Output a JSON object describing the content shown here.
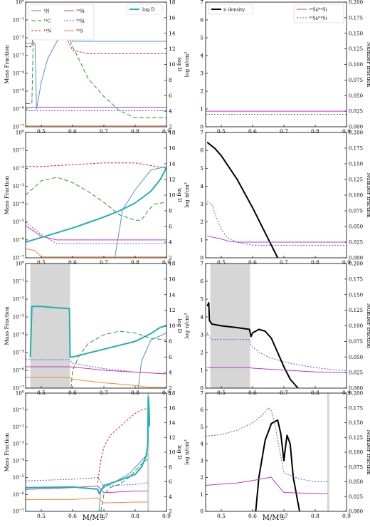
{
  "figure": {
    "xlabel": "M/M☉"
  },
  "chart_data": [
    {
      "type": "line",
      "panel": "left-row1",
      "xlim": [
        0.45,
        0.9
      ],
      "ylim_log": [
        -7,
        0
      ],
      "y2lim": [
        2,
        18
      ],
      "ylabel": "Mass Fraction",
      "y2label": "log D",
      "legend": [
        "¹H",
        "¹³C",
        "¹⁴N",
        "²⁹Si",
        "³⁰Si",
        "³²S"
      ],
      "legend2": [
        "log D"
      ],
      "series": [
        {
          "name": "¹H",
          "color": "#5b8fd0",
          "dash": "",
          "x": [
            0.45,
            0.48,
            0.485,
            0.5,
            0.52,
            0.55,
            0.58,
            0.6,
            0.7,
            0.9
          ],
          "y": [
            -2.3,
            -2.3,
            -6,
            -4.5,
            -3.2,
            -2.2,
            -1.6,
            -2.2,
            -2.2,
            -2.2
          ]
        },
        {
          "name": "¹³C",
          "color": "#2a9a2a",
          "dash": "6,3",
          "x": [
            0.45,
            0.47,
            0.475,
            0.5,
            0.55,
            0.58,
            0.6,
            0.62,
            0.65,
            0.7,
            0.75,
            0.8,
            0.9
          ],
          "y": [
            -5.7,
            -5.7,
            -1.5,
            -1.7,
            -2.0,
            -1.6,
            -2.5,
            -3.2,
            -4.3,
            -5.3,
            -6.1,
            -6.5,
            -6.5
          ]
        },
        {
          "name": "¹⁴N",
          "color": "#e0281e",
          "dash": "3,2",
          "x": [
            0.45,
            0.47,
            0.48,
            0.52,
            0.55,
            0.58,
            0.6,
            0.65,
            0.7,
            0.9
          ],
          "y": [
            -2.5,
            -2.5,
            -0.7,
            -0.9,
            -1.4,
            -2.0,
            -2.7,
            -2.9,
            -2.9,
            -2.9
          ]
        },
        {
          "name": "²⁹Si",
          "color": "#c038c0",
          "dash": "",
          "x": [
            0.45,
            0.9
          ],
          "y": [
            -5.9,
            -5.9
          ]
        },
        {
          "name": "³⁰Si",
          "color": "#5c5cdd",
          "dash": "2,2",
          "x": [
            0.45,
            0.9
          ],
          "y": [
            -6.1,
            -6.1
          ]
        },
        {
          "name": "³²S",
          "color": "#f08a30",
          "dash": "",
          "x": [
            0.45,
            0.9
          ],
          "y": [
            -6.95,
            -6.95
          ]
        }
      ]
    },
    {
      "type": "line",
      "panel": "right-row1",
      "xlim": [
        0.45,
        0.9
      ],
      "ylim": [
        0,
        7
      ],
      "y2lim": [
        0,
        0.2
      ],
      "ylabel": "log n/cm³",
      "y2label": "Number fraction",
      "legend": [
        "n density"
      ],
      "legend2": [
        "²⁹Si/²⁸Si",
        "³⁰Si/²⁸Si"
      ],
      "series": [
        {
          "name": "²⁹Si/²⁸Si",
          "color": "#c038c0",
          "dash": "",
          "axis": "y2",
          "x": [
            0.45,
            0.9
          ],
          "y": [
            0.025,
            0.025
          ]
        },
        {
          "name": "³⁰Si/²⁸Si",
          "color": "#5c5cdd",
          "dash": "2,2",
          "axis": "y2",
          "x": [
            0.45,
            0.9
          ],
          "y": [
            0.02,
            0.02
          ]
        }
      ]
    },
    {
      "type": "line",
      "panel": "left-row2",
      "xlim": [
        0.45,
        0.9
      ],
      "ylim_log": [
        -7,
        0
      ],
      "y2lim": [
        2,
        18
      ],
      "ylabel": "Mass Fraction",
      "y2label": "log D",
      "series": [
        {
          "name": "¹⁴N",
          "color": "#e0281e",
          "dash": "3,2",
          "x": [
            0.45,
            0.5,
            0.6,
            0.7,
            0.8,
            0.85,
            0.9
          ],
          "y": [
            -1.9,
            -1.9,
            -1.8,
            -1.7,
            -1.7,
            -1.85,
            -2.0
          ]
        },
        {
          "name": "¹³C",
          "color": "#2a9a2a",
          "dash": "6,3",
          "x": [
            0.45,
            0.5,
            0.55,
            0.6,
            0.65,
            0.7,
            0.75,
            0.8,
            0.82,
            0.84,
            0.86,
            0.9
          ],
          "y": [
            -3.5,
            -2.7,
            -2.5,
            -2.8,
            -3.3,
            -3.9,
            -4.6,
            -4.9,
            -4.9,
            -4.4,
            -4.0,
            -3.9
          ]
        },
        {
          "name": "¹H",
          "color": "#5b8fd0",
          "dash": "",
          "x": [
            0.735,
            0.76,
            0.8,
            0.85,
            0.9
          ],
          "y": [
            -7,
            -4.3,
            -3.2,
            -2.1,
            -1.9
          ]
        },
        {
          "name": "²⁹Si",
          "color": "#c038c0",
          "dash": "",
          "x": [
            0.45,
            0.5,
            0.55,
            0.9
          ],
          "y": [
            -5.2,
            -5.8,
            -6.0,
            -6.0
          ]
        },
        {
          "name": "³⁰Si",
          "color": "#5c5cdd",
          "dash": "2,2",
          "x": [
            0.45,
            0.5,
            0.55,
            0.9
          ],
          "y": [
            -5.0,
            -5.7,
            -6.2,
            -6.2
          ]
        },
        {
          "name": "³²S",
          "color": "#f08a30",
          "dash": "",
          "x": [
            0.45,
            0.48,
            0.5,
            0.9
          ],
          "y": [
            -6.5,
            -6.6,
            -6.95,
            -6.95
          ]
        },
        {
          "name": "log D",
          "color": "#20b0b0",
          "dash": "",
          "axis": "y2",
          "width": 2,
          "x": [
            0.45,
            0.5,
            0.55,
            0.6,
            0.65,
            0.7,
            0.75,
            0.8,
            0.85,
            0.88,
            0.9
          ],
          "y": [
            4.0,
            4.6,
            5.2,
            5.8,
            6.5,
            7.2,
            8.0,
            9.0,
            10.5,
            12.0,
            13.5
          ]
        }
      ]
    },
    {
      "type": "line",
      "panel": "right-row2",
      "xlim": [
        0.45,
        0.9
      ],
      "ylim": [
        0,
        7
      ],
      "y2lim": [
        0,
        0.2
      ],
      "ylabel": "log n/cm³",
      "y2label": "Number fraction",
      "series": [
        {
          "name": "n density",
          "color": "#000000",
          "dash": "",
          "width": 2,
          "x": [
            0.455,
            0.48,
            0.5,
            0.55,
            0.6,
            0.64,
            0.68
          ],
          "y": [
            6.45,
            6.1,
            5.7,
            4.4,
            2.8,
            1.4,
            0
          ]
        },
        {
          "name": "²⁹Si/²⁸Si",
          "color": "#c038c0",
          "dash": "",
          "axis": "y2",
          "x": [
            0.455,
            0.48,
            0.5,
            0.52,
            0.55,
            0.6,
            0.9
          ],
          "y": [
            0.035,
            0.032,
            0.03,
            0.027,
            0.025,
            0.025,
            0.025
          ]
        },
        {
          "name": "³⁰Si/²⁸Si",
          "color": "#5c5cdd",
          "dash": "2,2",
          "axis": "y2",
          "x": [
            0.455,
            0.47,
            0.48,
            0.5,
            0.52,
            0.55,
            0.6,
            0.9
          ],
          "y": [
            0.09,
            0.085,
            0.07,
            0.045,
            0.032,
            0.025,
            0.02,
            0.02
          ]
        }
      ]
    },
    {
      "type": "line",
      "panel": "left-row3",
      "xlim": [
        0.45,
        0.9
      ],
      "ylim_log": [
        -7,
        0
      ],
      "y2lim": [
        2,
        18
      ],
      "ylabel": "Mass Fraction",
      "y2label": "log D",
      "shaded_x": [
        0.465,
        0.592
      ],
      "series": [
        {
          "name": "log D",
          "color": "#20b0b0",
          "dash": "",
          "axis": "y2",
          "width": 2,
          "x": [
            0.465,
            0.47,
            0.5,
            0.55,
            0.59,
            0.592,
            0.6,
            0.65,
            0.7,
            0.75,
            0.8,
            0.85,
            0.88,
            0.9
          ],
          "y": [
            6,
            12.5,
            12.5,
            12.3,
            12.2,
            6,
            6,
            6.5,
            7,
            7.5,
            8,
            9,
            9.8,
            10
          ]
        },
        {
          "name": "¹³C",
          "color": "#2a9a2a",
          "dash": "6,3",
          "x": [
            0.595,
            0.6,
            0.62,
            0.65,
            0.7,
            0.75,
            0.8,
            0.85,
            0.9
          ],
          "y": [
            -7,
            -6.0,
            -5.2,
            -4.5,
            -4.0,
            -3.8,
            -3.9,
            -4.2,
            -4.3
          ]
        },
        {
          "name": "¹H",
          "color": "#5b8fd0",
          "dash": "",
          "x": [
            0.81,
            0.82,
            0.85,
            0.9
          ],
          "y": [
            -7,
            -5.5,
            -4.3,
            -3.9
          ]
        },
        {
          "name": "³⁰Si",
          "color": "#5c5cdd",
          "dash": "2,2",
          "x": [
            0.45,
            0.59,
            0.6,
            0.7,
            0.8,
            0.9
          ],
          "y": [
            -5.4,
            -5.4,
            -5.6,
            -5.9,
            -6.1,
            -6.2
          ]
        },
        {
          "name": "²⁹Si",
          "color": "#c038c0",
          "dash": "",
          "x": [
            0.45,
            0.59,
            0.65,
            0.7,
            0.8,
            0.9
          ],
          "y": [
            -5.8,
            -5.8,
            -5.9,
            -6.0,
            -6.1,
            -6.2
          ]
        },
        {
          "name": "³²S",
          "color": "#f08a30",
          "dash": "",
          "x": [
            0.45,
            0.59,
            0.6,
            0.7,
            0.8,
            0.84,
            0.9
          ],
          "y": [
            -6.4,
            -6.4,
            -6.5,
            -6.7,
            -6.85,
            -6.95,
            -6.95
          ]
        }
      ]
    },
    {
      "type": "line",
      "panel": "right-row3",
      "xlim": [
        0.45,
        0.9
      ],
      "ylim": [
        0,
        7
      ],
      "y2lim": [
        0,
        0.2
      ],
      "ylabel": "log n/cm³",
      "y2label": "Number fraction",
      "shaded_x": [
        0.465,
        0.592
      ],
      "series": [
        {
          "name": "n density",
          "color": "#000000",
          "dash": "",
          "width": 2,
          "x": [
            0.455,
            0.46,
            0.462,
            0.47,
            0.5,
            0.55,
            0.59,
            0.595,
            0.6,
            0.62,
            0.64,
            0.66,
            0.68,
            0.7,
            0.72,
            0.745
          ],
          "y": [
            4.6,
            4.8,
            3.8,
            3.6,
            3.5,
            3.4,
            3.3,
            2.9,
            3.1,
            3.3,
            3.2,
            2.8,
            2.0,
            1.2,
            0.5,
            0
          ]
        },
        {
          "name": "³⁰Si/²⁸Si",
          "color": "#5c5cdd",
          "dash": "2,2",
          "axis": "y2",
          "x": [
            0.455,
            0.462,
            0.47,
            0.59,
            0.595,
            0.62,
            0.65,
            0.7,
            0.75,
            0.8,
            0.85,
            0.9
          ],
          "y": [
            0.09,
            0.082,
            0.078,
            0.078,
            0.068,
            0.058,
            0.05,
            0.042,
            0.037,
            0.033,
            0.03,
            0.028
          ]
        },
        {
          "name": "²⁹Si/²⁸Si",
          "color": "#c038c0",
          "dash": "",
          "axis": "y2",
          "x": [
            0.455,
            0.59,
            0.6,
            0.7,
            0.8,
            0.9
          ],
          "y": [
            0.033,
            0.033,
            0.032,
            0.029,
            0.026,
            0.025
          ]
        }
      ]
    },
    {
      "type": "line",
      "panel": "left-row4",
      "xlim": [
        0.45,
        0.9
      ],
      "ylim_log": [
        -7,
        0
      ],
      "y2lim": [
        2,
        18
      ],
      "ylabel": "Mass Fraction",
      "y2label": "log D",
      "shaded_x": [
        0.838,
        0.845
      ],
      "series": [
        {
          "name": "¹⁴N",
          "color": "#e0281e",
          "dash": "3,2",
          "x": [
            0.68,
            0.69,
            0.7,
            0.72,
            0.75,
            0.78,
            0.8,
            0.82,
            0.84
          ],
          "y": [
            -5.3,
            -4.0,
            -3.2,
            -2.5,
            -2.0,
            -1.5,
            -1.2,
            -1.0,
            -0.9
          ]
        },
        {
          "name": "¹H",
          "color": "#5b8fd0",
          "dash": "",
          "x": [
            0.684,
            0.69,
            0.7,
            0.72,
            0.74,
            0.78,
            0.8,
            0.82,
            0.84
          ],
          "y": [
            -7,
            -5.8,
            -5.6,
            -5.4,
            -5.2,
            -4.8,
            -4.4,
            -4.0,
            -3.6
          ]
        },
        {
          "name": "¹³C",
          "color": "#2a9a2a",
          "dash": "6,3",
          "x": [
            0.69,
            0.7,
            0.72,
            0.75,
            0.78,
            0.8,
            0.82,
            0.84
          ],
          "y": [
            -7,
            -6.0,
            -5.6,
            -5.4,
            -5.0,
            -4.6,
            -4.2,
            -3.9
          ]
        },
        {
          "name": "³⁰Si",
          "color": "#5c5cdd",
          "dash": "2,2",
          "x": [
            0.45,
            0.6,
            0.68,
            0.7,
            0.8,
            0.84
          ],
          "y": [
            -5.2,
            -5.1,
            -5.0,
            -5.5,
            -5.4,
            -5.3
          ]
        },
        {
          "name": "²⁹Si",
          "color": "#c038c0",
          "dash": "",
          "x": [
            0.45,
            0.6,
            0.68,
            0.7,
            0.8,
            0.84
          ],
          "y": [
            -5.7,
            -5.6,
            -5.5,
            -5.9,
            -5.8,
            -5.8
          ]
        },
        {
          "name": "³²S",
          "color": "#f08a30",
          "dash": "",
          "x": [
            0.45,
            0.6,
            0.68,
            0.7,
            0.8,
            0.84
          ],
          "y": [
            -6.3,
            -6.3,
            -6.2,
            -6.5,
            -6.45,
            -6.45
          ]
        },
        {
          "name": "log D",
          "color": "#20b0b0",
          "dash": "",
          "axis": "y2",
          "width": 2,
          "x": [
            0.45,
            0.6,
            0.68,
            0.685,
            0.7,
            0.75,
            0.8,
            0.82,
            0.835,
            0.84,
            0.842,
            0.844,
            0.846
          ],
          "y": [
            5.2,
            5.3,
            5.0,
            4.4,
            5.5,
            6.2,
            7.0,
            8.0,
            9.5,
            11,
            17.5,
            16,
            13.5
          ]
        }
      ]
    },
    {
      "type": "line",
      "panel": "right-row4",
      "xlim": [
        0.45,
        0.9
      ],
      "ylim": [
        0,
        7
      ],
      "y2lim": [
        0,
        0.2
      ],
      "ylabel": "log n/cm³",
      "y2label": "Number fraction",
      "shaded_x": [
        0.838,
        0.845
      ],
      "series": [
        {
          "name": "n density",
          "color": "#000000",
          "dash": "",
          "width": 2,
          "x": [
            0.61,
            0.62,
            0.64,
            0.66,
            0.68,
            0.69,
            0.7,
            0.705,
            0.71,
            0.72,
            0.73,
            0.75
          ],
          "y": [
            0,
            2.0,
            4.2,
            5.2,
            5.4,
            4.6,
            3.0,
            3.8,
            4.5,
            4.0,
            2.0,
            0
          ]
        },
        {
          "name": "³⁰Si/²⁸Si",
          "color": "#5c5cdd",
          "dash": "2,2",
          "axis": "y2",
          "x": [
            0.45,
            0.5,
            0.55,
            0.6,
            0.63,
            0.65,
            0.66,
            0.67,
            0.7,
            0.75,
            0.8,
            0.84
          ],
          "y": [
            0.127,
            0.13,
            0.137,
            0.15,
            0.162,
            0.175,
            0.17,
            0.15,
            0.065,
            0.055,
            0.05,
            0.05
          ]
        },
        {
          "name": "²⁹Si/²⁸Si",
          "color": "#c038c0",
          "dash": "",
          "axis": "y2",
          "x": [
            0.45,
            0.5,
            0.55,
            0.6,
            0.65,
            0.66,
            0.67,
            0.7,
            0.8,
            0.84
          ],
          "y": [
            0.044,
            0.046,
            0.048,
            0.052,
            0.057,
            0.058,
            0.05,
            0.032,
            0.03,
            0.03
          ]
        }
      ]
    }
  ]
}
